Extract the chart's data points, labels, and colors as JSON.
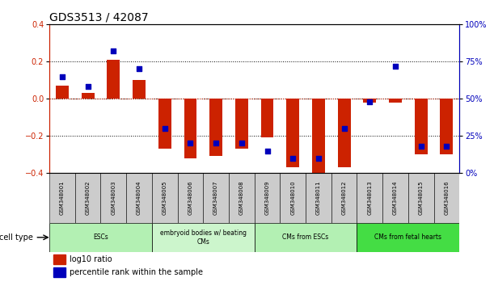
{
  "title": "GDS3513 / 42087",
  "samples": [
    "GSM348001",
    "GSM348002",
    "GSM348003",
    "GSM348004",
    "GSM348005",
    "GSM348006",
    "GSM348007",
    "GSM348008",
    "GSM348009",
    "GSM348010",
    "GSM348011",
    "GSM348012",
    "GSM348013",
    "GSM348014",
    "GSM348015",
    "GSM348016"
  ],
  "log10_ratio": [
    0.07,
    0.03,
    0.21,
    0.1,
    -0.27,
    -0.32,
    -0.31,
    -0.27,
    -0.21,
    -0.37,
    -0.42,
    -0.37,
    -0.02,
    -0.02,
    -0.3,
    -0.3
  ],
  "percentile_rank": [
    65,
    58,
    82,
    70,
    30,
    20,
    20,
    20,
    15,
    10,
    10,
    30,
    48,
    72,
    18,
    18
  ],
  "cell_types": [
    {
      "label": "ESCs",
      "start": 0,
      "end": 4,
      "color": "#b3f0b3"
    },
    {
      "label": "embryoid bodies w/ beating\nCMs",
      "start": 4,
      "end": 8,
      "color": "#ccf5cc"
    },
    {
      "label": "CMs from ESCs",
      "start": 8,
      "end": 12,
      "color": "#b3f0b3"
    },
    {
      "label": "CMs from fetal hearts",
      "start": 12,
      "end": 16,
      "color": "#44dd44"
    }
  ],
  "ylim": [
    -0.4,
    0.4
  ],
  "y2lim": [
    0,
    100
  ],
  "yticks": [
    -0.4,
    -0.2,
    0.0,
    0.2,
    0.4
  ],
  "y2ticks": [
    0,
    25,
    50,
    75,
    100
  ],
  "bar_color_red": "#cc2200",
  "bar_color_blue": "#0000bb",
  "bg_color": "#ffffff",
  "sample_bg": "#cccccc",
  "title_fontsize": 10,
  "tick_fontsize": 7,
  "label_fontsize": 7
}
